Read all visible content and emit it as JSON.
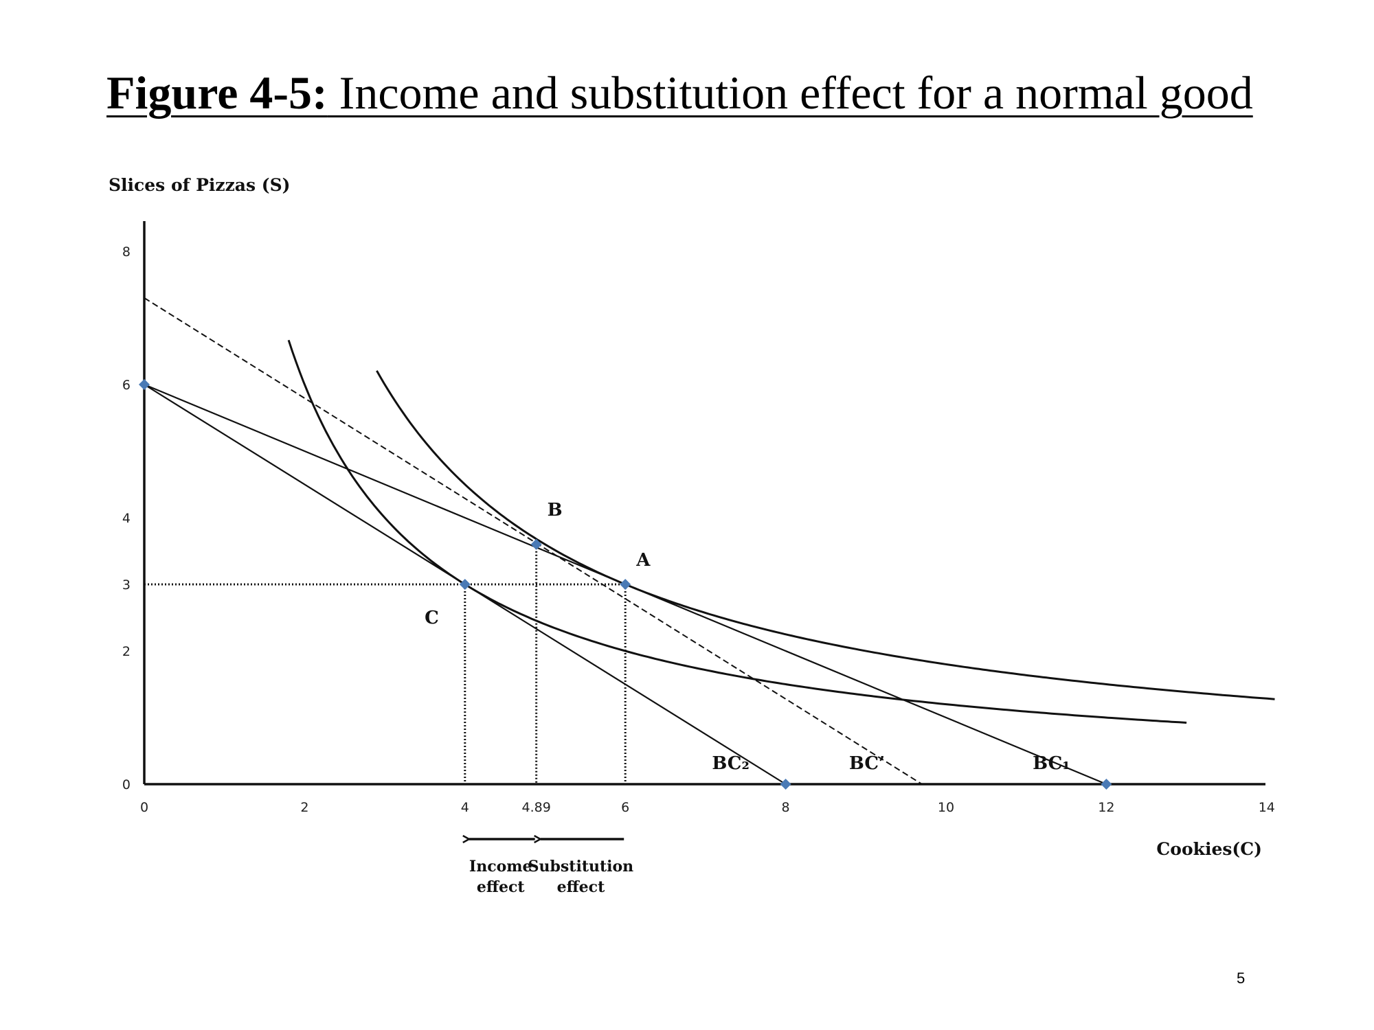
{
  "title": {
    "prefix": "Figure 4-5:",
    "text": " Income and substitution effect for a normal good"
  },
  "page_number": "5",
  "colors": {
    "marker": "#4a7ab5",
    "line": "#111111"
  },
  "chart_data": {
    "type": "line",
    "xlabel": "Cookies(C)",
    "ylabel": "Slices of Pizzas (S)",
    "xlim": [
      0,
      14
    ],
    "ylim": [
      0,
      8.5
    ],
    "grid": false,
    "x_ticks": [
      {
        "value": 0,
        "label": "0"
      },
      {
        "value": 2,
        "label": "2"
      },
      {
        "value": 4,
        "label": "4"
      },
      {
        "value": 4.89,
        "label": "4.89"
      },
      {
        "value": 6,
        "label": "6"
      },
      {
        "value": 8,
        "label": "8"
      },
      {
        "value": 10,
        "label": "10"
      },
      {
        "value": 12,
        "label": "12"
      },
      {
        "value": 14,
        "label": "14"
      }
    ],
    "y_ticks": [
      {
        "value": 0,
        "label": "0"
      },
      {
        "value": 2,
        "label": "2"
      },
      {
        "value": 3,
        "label": "3"
      },
      {
        "value": 4,
        "label": "4"
      },
      {
        "value": 6,
        "label": "6"
      },
      {
        "value": 8,
        "label": "8"
      }
    ],
    "budget_lines": [
      {
        "name": "BC₂",
        "from": [
          0,
          6
        ],
        "to": [
          8,
          0
        ],
        "style": "solid"
      },
      {
        "name": "BC₁",
        "from": [
          0,
          6
        ],
        "to": [
          12,
          0
        ],
        "style": "solid"
      },
      {
        "name": "BC’",
        "from": [
          0,
          7.3
        ],
        "to": [
          9.7,
          0
        ],
        "style": "dashed"
      }
    ],
    "indifference_curves": [
      {
        "k": 12,
        "x_from": 1.8,
        "x_to": 13
      },
      {
        "k": 18,
        "x_from": 2.9,
        "x_to": 14.1
      }
    ],
    "points": [
      {
        "label": "A",
        "x": 6,
        "y": 3
      },
      {
        "label": "B",
        "x": 4.89,
        "y": 3.6
      },
      {
        "label": "C",
        "x": 4,
        "y": 3
      }
    ],
    "endpoints": [
      {
        "x": 0,
        "y": 6
      },
      {
        "x": 8,
        "y": 0
      },
      {
        "x": 12,
        "y": 0
      }
    ],
    "guides": {
      "horizontal_y": 3,
      "vertical_x": [
        4,
        4.89,
        6
      ]
    },
    "effects": [
      {
        "label_line1": "Income",
        "label_line2": "effect",
        "from_x": 4.89,
        "to_x": 4
      },
      {
        "label_line1": "Substitution",
        "label_line2": "effect",
        "from_x": 6,
        "to_x": 4.89
      }
    ]
  }
}
